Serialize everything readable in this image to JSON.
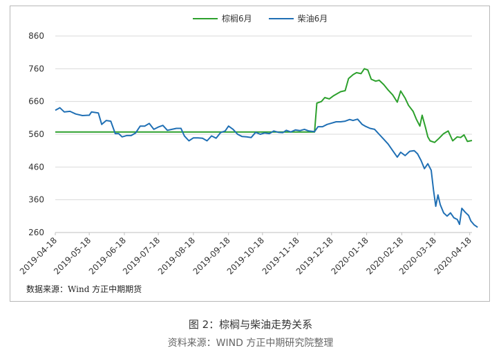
{
  "chart_data": {
    "type": "line",
    "title": "",
    "xlabel": "",
    "ylabel": "",
    "ylim": [
      260,
      860
    ],
    "yticks": [
      "860",
      "760",
      "660",
      "560",
      "460",
      "360",
      "260"
    ],
    "xticks": [
      "2019-04-18",
      "2019-05-18",
      "2019-06-18",
      "2019-07-18",
      "2019-08-18",
      "2019-09-18",
      "2019-10-18",
      "2019-11-18",
      "2019-12-18",
      "2020-01-18",
      "2020-02-18",
      "2020-03-18",
      "2020-04-18"
    ],
    "grid": "horizontal",
    "legend_position": "top-center",
    "series": [
      {
        "name": "棕榈6月",
        "color": "#2ca02c",
        "points": [
          [
            "2019-04-18",
            567
          ],
          [
            "2019-05-18",
            567
          ],
          [
            "2019-06-18",
            567
          ],
          [
            "2019-07-18",
            567
          ],
          [
            "2019-08-18",
            567
          ],
          [
            "2019-09-18",
            567
          ],
          [
            "2019-10-18",
            567
          ],
          [
            "2019-11-18",
            567
          ],
          [
            "2019-11-27",
            567
          ],
          [
            "2019-12-03",
            567
          ],
          [
            "2019-12-05",
            655
          ],
          [
            "2019-12-09",
            660
          ],
          [
            "2019-12-12",
            672
          ],
          [
            "2019-12-16",
            668
          ],
          [
            "2019-12-20",
            678
          ],
          [
            "2019-12-26",
            690
          ],
          [
            "2019-12-30",
            693
          ],
          [
            "2020-01-02",
            730
          ],
          [
            "2020-01-06",
            742
          ],
          [
            "2020-01-09",
            748
          ],
          [
            "2020-01-13",
            745
          ],
          [
            "2020-01-16",
            760
          ],
          [
            "2020-01-19",
            756
          ],
          [
            "2020-01-22",
            728
          ],
          [
            "2020-01-26",
            722
          ],
          [
            "2020-01-29",
            725
          ],
          [
            "2020-02-02",
            712
          ],
          [
            "2020-02-06",
            695
          ],
          [
            "2020-02-10",
            680
          ],
          [
            "2020-02-14",
            658
          ],
          [
            "2020-02-17",
            692
          ],
          [
            "2020-02-21",
            670
          ],
          [
            "2020-02-24",
            648
          ],
          [
            "2020-02-28",
            630
          ],
          [
            "2020-03-02",
            605
          ],
          [
            "2020-03-05",
            585
          ],
          [
            "2020-03-07",
            618
          ],
          [
            "2020-03-10",
            580
          ],
          [
            "2020-03-12",
            552
          ],
          [
            "2020-03-14",
            540
          ],
          [
            "2020-03-18",
            535
          ],
          [
            "2020-03-22",
            548
          ],
          [
            "2020-03-26",
            562
          ],
          [
            "2020-03-30",
            570
          ],
          [
            "2020-04-03",
            540
          ],
          [
            "2020-04-07",
            552
          ],
          [
            "2020-04-10",
            550
          ],
          [
            "2020-04-13",
            558
          ],
          [
            "2020-04-16",
            538
          ],
          [
            "2020-04-20",
            541
          ]
        ]
      },
      {
        "name": "柴油6月",
        "color": "#1f6fb4",
        "points": [
          [
            "2019-04-18",
            633
          ],
          [
            "2019-04-22",
            641
          ],
          [
            "2019-04-26",
            628
          ],
          [
            "2019-05-01",
            630
          ],
          [
            "2019-05-06",
            622
          ],
          [
            "2019-05-12",
            617
          ],
          [
            "2019-05-18",
            618
          ],
          [
            "2019-05-20",
            628
          ],
          [
            "2019-05-26",
            625
          ],
          [
            "2019-05-29",
            590
          ],
          [
            "2019-06-02",
            602
          ],
          [
            "2019-06-06",
            600
          ],
          [
            "2019-06-10",
            562
          ],
          [
            "2019-06-13",
            562
          ],
          [
            "2019-06-16",
            552
          ],
          [
            "2019-06-20",
            556
          ],
          [
            "2019-06-24",
            556
          ],
          [
            "2019-06-28",
            564
          ],
          [
            "2019-07-02",
            585
          ],
          [
            "2019-07-06",
            585
          ],
          [
            "2019-07-10",
            593
          ],
          [
            "2019-07-14",
            575
          ],
          [
            "2019-07-18",
            582
          ],
          [
            "2019-07-22",
            587
          ],
          [
            "2019-07-26",
            572
          ],
          [
            "2019-07-30",
            575
          ],
          [
            "2019-08-03",
            578
          ],
          [
            "2019-08-07",
            578
          ],
          [
            "2019-08-10",
            555
          ],
          [
            "2019-08-14",
            540
          ],
          [
            "2019-08-18",
            549
          ],
          [
            "2019-08-22",
            549
          ],
          [
            "2019-08-26",
            548
          ],
          [
            "2019-08-30",
            540
          ],
          [
            "2019-09-03",
            555
          ],
          [
            "2019-09-07",
            548
          ],
          [
            "2019-09-11",
            565
          ],
          [
            "2019-09-15",
            570
          ],
          [
            "2019-09-18",
            585
          ],
          [
            "2019-09-22",
            575
          ],
          [
            "2019-09-26",
            560
          ],
          [
            "2019-09-30",
            553
          ],
          [
            "2019-10-04",
            552
          ],
          [
            "2019-10-08",
            550
          ],
          [
            "2019-10-12",
            566
          ],
          [
            "2019-10-16",
            560
          ],
          [
            "2019-10-20",
            564
          ],
          [
            "2019-10-24",
            562
          ],
          [
            "2019-10-28",
            570
          ],
          [
            "2019-11-01",
            566
          ],
          [
            "2019-11-05",
            565
          ],
          [
            "2019-11-08",
            572
          ],
          [
            "2019-11-12",
            567
          ],
          [
            "2019-11-16",
            573
          ],
          [
            "2019-11-20",
            571
          ],
          [
            "2019-11-24",
            575
          ],
          [
            "2019-11-28",
            570
          ],
          [
            "2019-12-03",
            568
          ],
          [
            "2019-12-06",
            583
          ],
          [
            "2019-12-10",
            583
          ],
          [
            "2019-12-14",
            590
          ],
          [
            "2019-12-18",
            594
          ],
          [
            "2019-12-22",
            598
          ],
          [
            "2019-12-26",
            598
          ],
          [
            "2019-12-30",
            600
          ],
          [
            "2020-01-03",
            605
          ],
          [
            "2020-01-06",
            602
          ],
          [
            "2020-01-10",
            606
          ],
          [
            "2020-01-14",
            590
          ],
          [
            "2020-01-17",
            584
          ],
          [
            "2020-01-21",
            578
          ],
          [
            "2020-01-25",
            575
          ],
          [
            "2020-01-29",
            560
          ],
          [
            "2020-02-02",
            545
          ],
          [
            "2020-02-06",
            530
          ],
          [
            "2020-02-10",
            510
          ],
          [
            "2020-02-14",
            490
          ],
          [
            "2020-02-17",
            505
          ],
          [
            "2020-02-21",
            495
          ],
          [
            "2020-02-25",
            508
          ],
          [
            "2020-02-29",
            510
          ],
          [
            "2020-03-03",
            500
          ],
          [
            "2020-03-06",
            480
          ],
          [
            "2020-03-09",
            455
          ],
          [
            "2020-03-12",
            470
          ],
          [
            "2020-03-15",
            450
          ],
          [
            "2020-03-17",
            390
          ],
          [
            "2020-03-19",
            340
          ],
          [
            "2020-03-21",
            375
          ],
          [
            "2020-03-23",
            345
          ],
          [
            "2020-03-26",
            320
          ],
          [
            "2020-03-29",
            310
          ],
          [
            "2020-04-01",
            320
          ],
          [
            "2020-04-04",
            305
          ],
          [
            "2020-04-07",
            300
          ],
          [
            "2020-04-09",
            285
          ],
          [
            "2020-04-11",
            334
          ],
          [
            "2020-04-14",
            322
          ],
          [
            "2020-04-17",
            312
          ],
          [
            "2020-04-19",
            295
          ],
          [
            "2020-04-22",
            283
          ],
          [
            "2020-04-25",
            276
          ]
        ]
      }
    ],
    "annotation": "数据来源：Wind 方正中期期货"
  },
  "caption": {
    "title": "图 2：棕榈与柴油走势关系",
    "source": "资料来源：WIND 方正中期研究院整理"
  }
}
